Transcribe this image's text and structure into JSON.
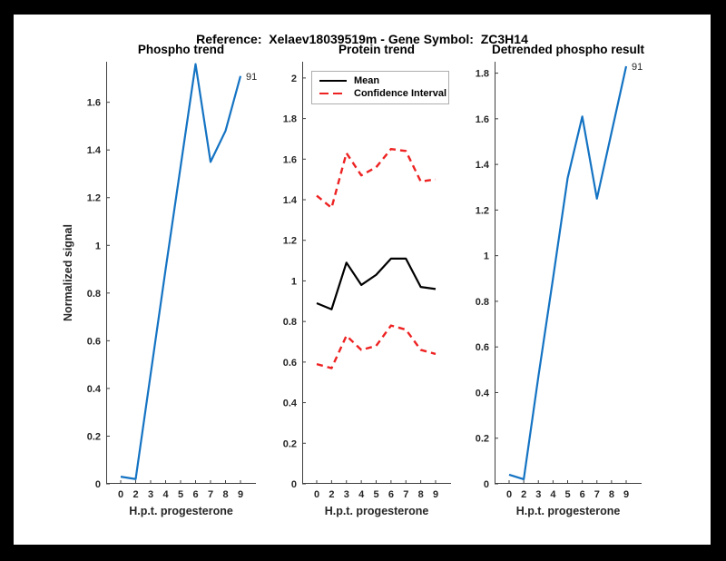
{
  "figure": {
    "title": "Reference:  Xelaev18039519m - Gene Symbol:  ZC3H14"
  },
  "palette": {
    "blue": "#1473C3",
    "red": "#EE2222",
    "black": "#000000",
    "axis": "#3F3F3F",
    "frame": "#000000",
    "canvas": "#FFFFFF",
    "legend_border": "#ADADAD"
  },
  "legend": {
    "position": "northwest",
    "entries": [
      {
        "label": "Mean",
        "color": "black",
        "style": "solid"
      },
      {
        "label": "Confidence Interval",
        "color": "red",
        "style": "dashed"
      }
    ]
  },
  "chart_data": [
    {
      "type": "line",
      "title": "Phospho trend",
      "xlabel": "H.p.t. progesterone",
      "ylabel": "Normalized signal",
      "x": [
        0,
        2,
        3,
        4,
        5,
        6,
        7,
        8,
        9
      ],
      "x_tick_labels": [
        "0",
        "2",
        "3",
        "4",
        "5",
        "6",
        "7",
        "8",
        "9"
      ],
      "ylim": [
        0,
        1.77
      ],
      "yticks": [
        0,
        0.2,
        0.4,
        0.6,
        0.8,
        1,
        1.2,
        1.4,
        1.6
      ],
      "ytick_labels": [
        "0",
        "0.2",
        "0.4",
        "0.6",
        "0.8",
        "1",
        "1.2",
        "1.4",
        "1.6"
      ],
      "grid": false,
      "series": [
        {
          "name": "phospho-signal",
          "color": "blue",
          "style": "solid",
          "width": 2.2,
          "values": [
            0.03,
            0.02,
            0.46,
            0.9,
            1.33,
            1.76,
            1.35,
            1.48,
            1.71
          ]
        }
      ],
      "end_label": "91"
    },
    {
      "type": "line",
      "title": "Protein trend",
      "xlabel": "H.p.t. progesterone",
      "ylabel": "",
      "x": [
        0,
        2,
        3,
        4,
        5,
        6,
        7,
        8,
        9
      ],
      "x_tick_labels": [
        "0",
        "2",
        "3",
        "4",
        "5",
        "6",
        "7",
        "8",
        "9"
      ],
      "ylim": [
        0,
        2.08
      ],
      "yticks": [
        0,
        0.2,
        0.4,
        0.6,
        0.8,
        1,
        1.2,
        1.4,
        1.6,
        1.8,
        2
      ],
      "ytick_labels": [
        "0",
        "0.2",
        "0.4",
        "0.6",
        "0.8",
        "1",
        "1.2",
        "1.4",
        "1.6",
        "1.8",
        "2"
      ],
      "grid": false,
      "series": [
        {
          "name": "mean",
          "color": "black",
          "style": "solid",
          "width": 2.2,
          "values": [
            0.89,
            0.86,
            1.09,
            0.98,
            1.03,
            1.11,
            1.11,
            0.97,
            0.96
          ]
        },
        {
          "name": "confidence-interval-upper",
          "color": "red",
          "style": "dashed",
          "width": 2.4,
          "values": [
            1.42,
            1.36,
            1.63,
            1.52,
            1.56,
            1.65,
            1.64,
            1.49,
            1.5
          ]
        },
        {
          "name": "confidence-interval-lower",
          "color": "red",
          "style": "dashed",
          "width": 2.4,
          "values": [
            0.59,
            0.57,
            0.73,
            0.66,
            0.68,
            0.78,
            0.76,
            0.66,
            0.64
          ]
        }
      ],
      "end_label": null
    },
    {
      "type": "line",
      "title": "Detrended phospho result",
      "xlabel": "H.p.t. progesterone",
      "ylabel": "",
      "x": [
        0,
        2,
        3,
        4,
        5,
        6,
        7,
        8,
        9
      ],
      "x_tick_labels": [
        "0",
        "2",
        "3",
        "4",
        "5",
        "6",
        "7",
        "8",
        "9"
      ],
      "ylim": [
        0,
        1.85
      ],
      "yticks": [
        0,
        0.2,
        0.4,
        0.6,
        0.8,
        1,
        1.2,
        1.4,
        1.6,
        1.8
      ],
      "ytick_labels": [
        "0",
        "0.2",
        "0.4",
        "0.6",
        "0.8",
        "1",
        "1.2",
        "1.4",
        "1.6",
        "1.8"
      ],
      "grid": false,
      "series": [
        {
          "name": "detrended-phospho-signal",
          "color": "blue",
          "style": "solid",
          "width": 2.2,
          "values": [
            0.04,
            0.02,
            0.47,
            0.9,
            1.34,
            1.61,
            1.25,
            1.54,
            1.83
          ]
        }
      ],
      "end_label": "91"
    }
  ]
}
